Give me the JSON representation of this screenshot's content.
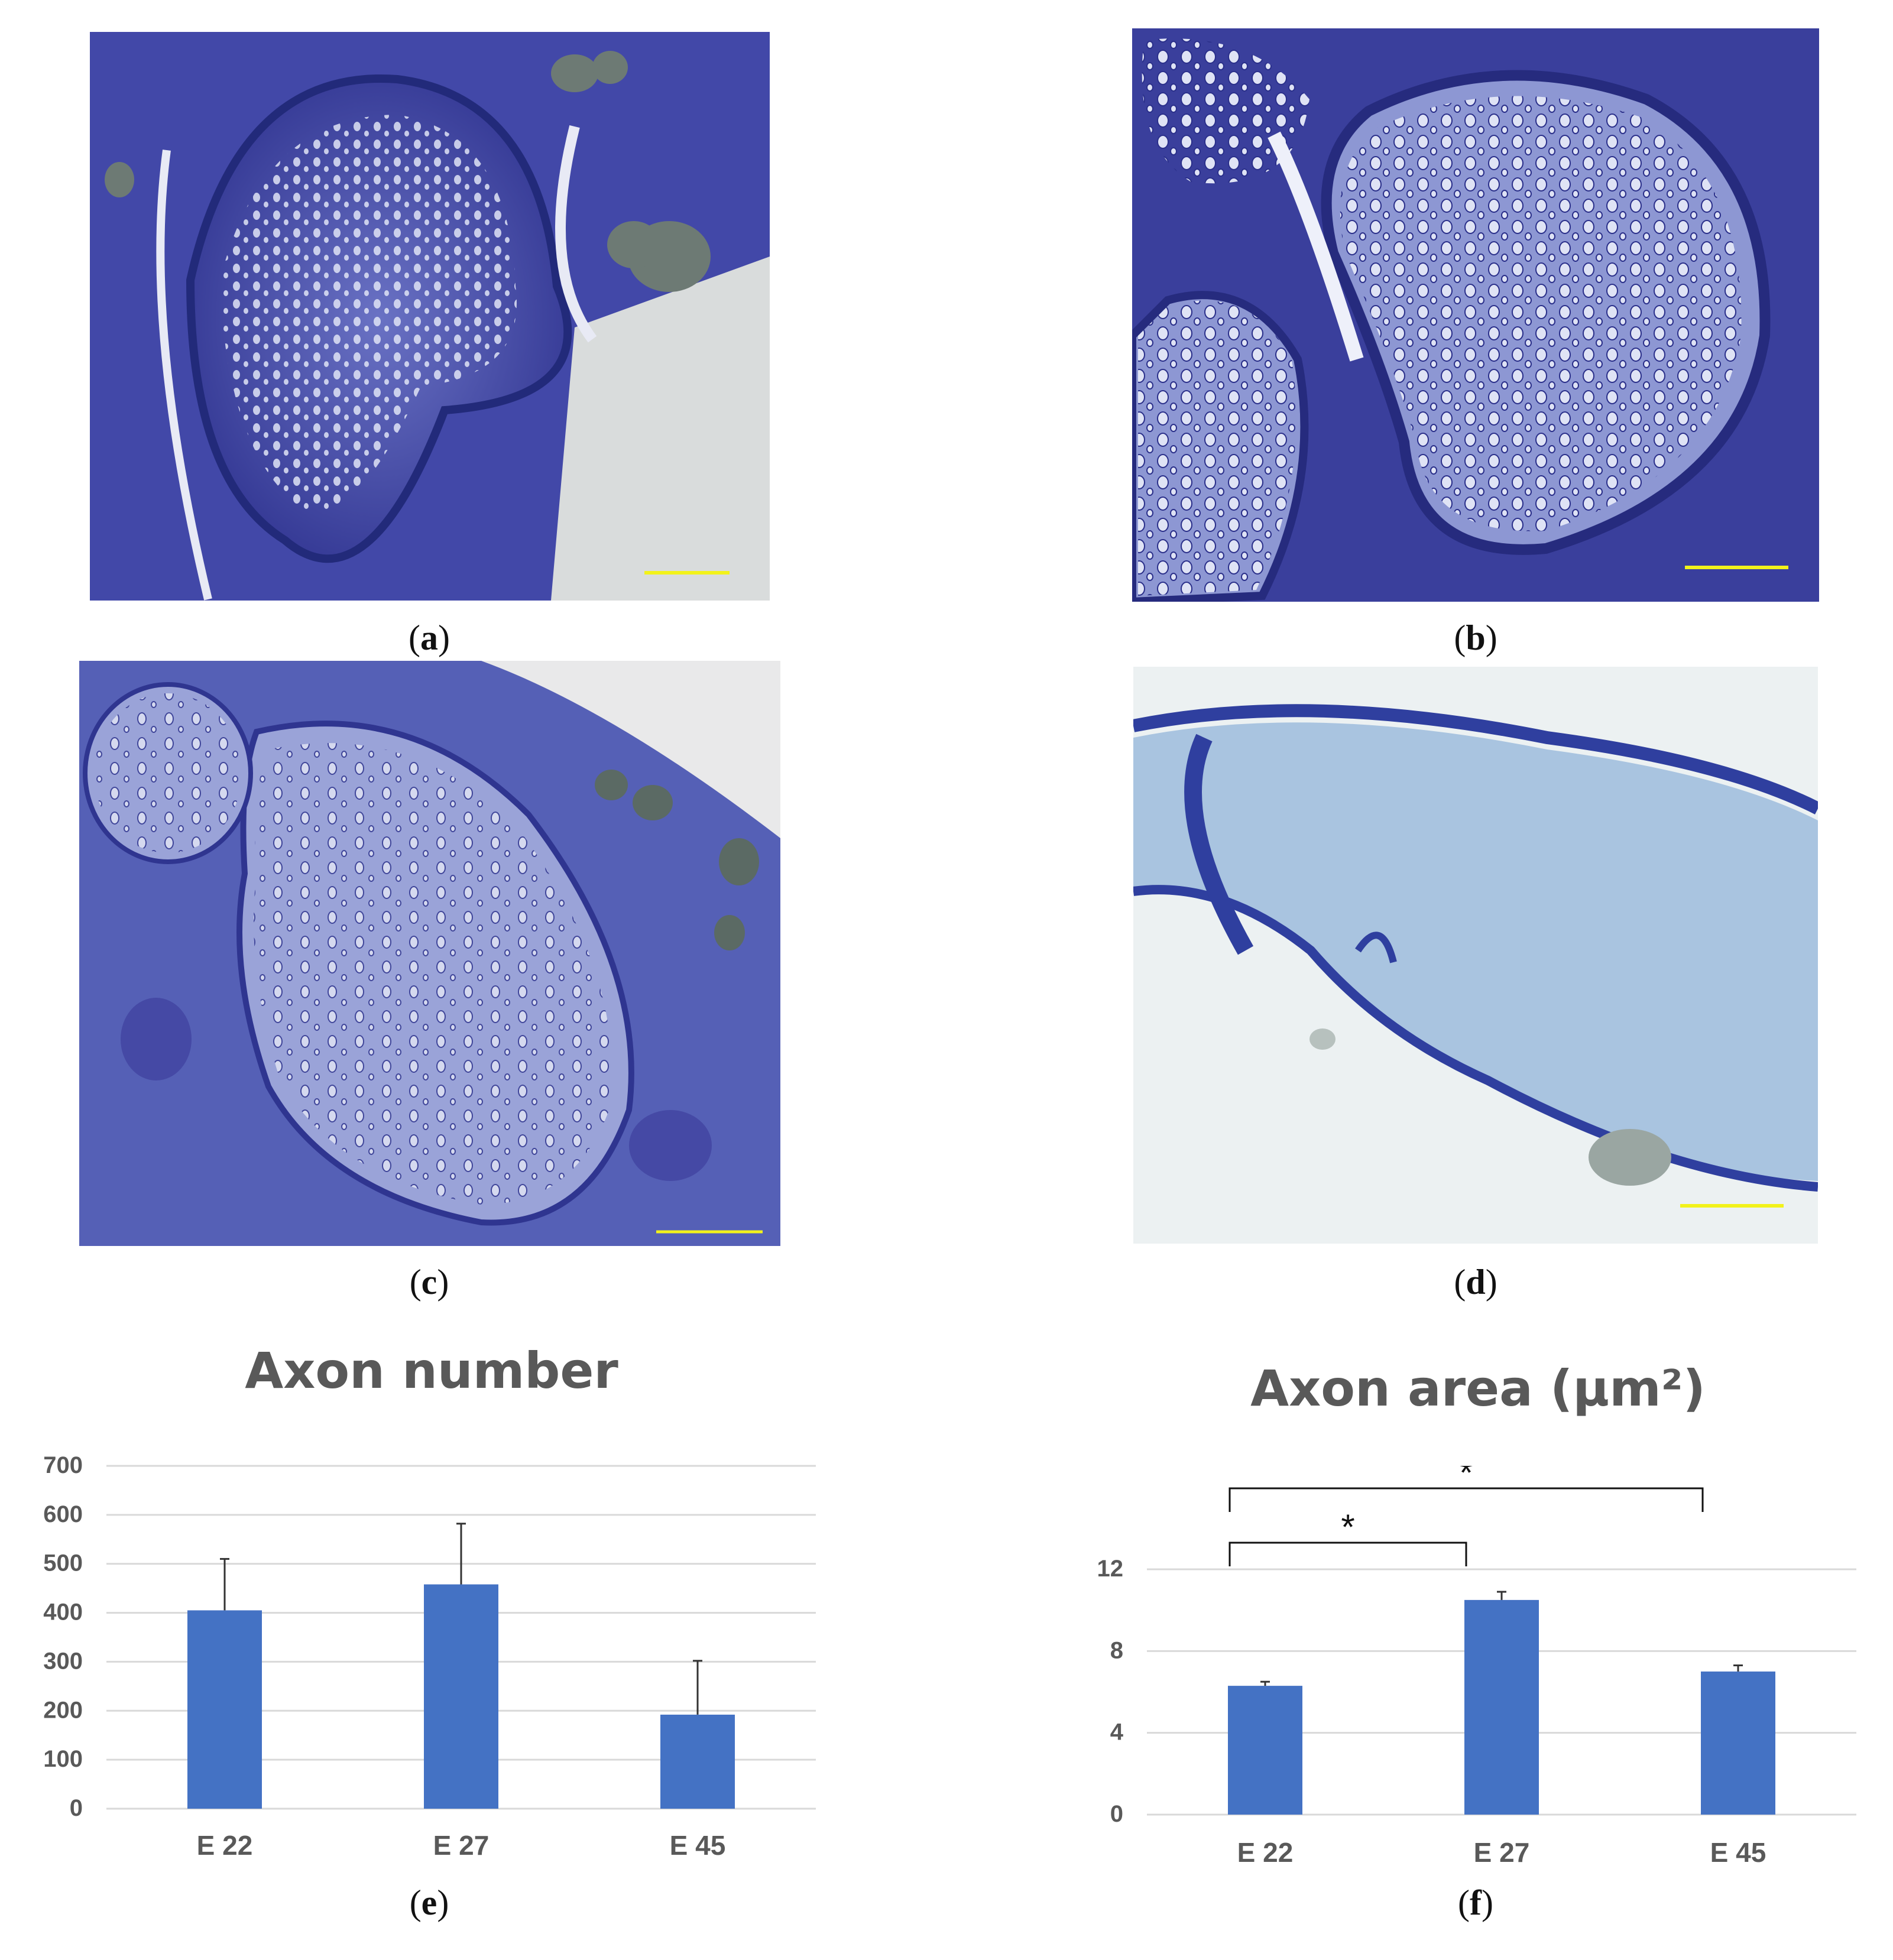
{
  "panels": {
    "a": {
      "caption": "a"
    },
    "b": {
      "caption": "b"
    },
    "c": {
      "caption": "c"
    },
    "d": {
      "caption": "d"
    },
    "e": {
      "caption": "e"
    },
    "f": {
      "caption": "f"
    }
  },
  "colors": {
    "bar": "#4472C4",
    "stain_dark": "#3b3f9e",
    "stain_mid": "#5a63b8",
    "stain_light": "#8f9ad8",
    "scale_bar": "#f2f21a",
    "grid": "#d9d9d9",
    "axis_text": "#595959"
  },
  "chart_data": [
    {
      "type": "bar",
      "title": "Axon number",
      "categories": [
        "E 22",
        "E 27",
        "E 45"
      ],
      "values": [
        405,
        458,
        192
      ],
      "error_plus": [
        105,
        124,
        110
      ],
      "ylim": [
        0,
        700
      ],
      "yticks": [
        "0",
        "100",
        "200",
        "300",
        "400",
        "500",
        "600",
        "700"
      ],
      "grid": true
    },
    {
      "type": "bar",
      "title": "Axon area (μm²)",
      "categories": [
        "E 22",
        "E 27",
        "E 45"
      ],
      "values": [
        6.3,
        10.5,
        7.0
      ],
      "error_plus": [
        0.2,
        0.4,
        0.3
      ],
      "ylim": [
        0,
        12
      ],
      "yticks": [
        "0",
        "4",
        "8",
        "12"
      ],
      "grid": true,
      "significance": [
        {
          "from": "E 22",
          "to": "E 27",
          "label": "*"
        },
        {
          "from": "E 22",
          "to": "E 45",
          "label": "*"
        }
      ]
    }
  ]
}
